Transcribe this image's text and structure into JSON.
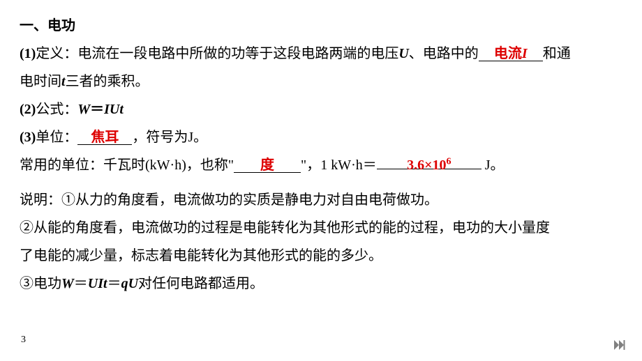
{
  "heading": "一、电功",
  "item1": {
    "label": "(1)",
    "pre": "定义：电流在一段电路中所做的功等于这段电路两端的电压",
    "varU": "U",
    "mid": "、电路中的",
    "blank1": "电流",
    "blank1_var": "I",
    "post1": "和通",
    "line2_pre": "电时间",
    "vart": "t",
    "line2_post": "三者的乘积。"
  },
  "item2": {
    "label": "(2)",
    "text": "公式：",
    "formula_W": "W",
    "formula_eq": "＝",
    "formula_IUt": "IUt"
  },
  "item3": {
    "label": "(3)",
    "pre": "单位：",
    "blank": "焦耳",
    "post": "，符号为J。"
  },
  "item4": {
    "pre": "常用的单位：千瓦时(kW",
    "dot": "·",
    "mid1": "h)，也称\"",
    "blank1": "度",
    "mid2": "\"，1 kW",
    "dot2": "·",
    "mid3": "h＝",
    "blank2_a": "3.6",
    "blank2_b": "×",
    "blank2_c": "10",
    "blank2_sup": "6",
    "post": " J。"
  },
  "note1": "说明：①从力的角度看，电流做功的实质是静电力对自由电荷做功。",
  "note2a": "②从能的角度看，电流做功的过程是电能转化为其他形式的能的过程，电功的大小量度",
  "note2b": "了电能的减少量，标志着电能转化为其他形式的能的多少。",
  "note3_pre": "③电功",
  "note3_W": "W",
  "note3_eq1": "＝",
  "note3_UIt": "UIt",
  "note3_eq2": "＝",
  "note3_qU": "qU",
  "note3_post": "对任何电路都适用。",
  "pageNum": "3",
  "colors": {
    "text": "#000000",
    "red": "#dd0000",
    "navFill": "#808080",
    "bg": "#ffffff"
  },
  "blankWidths": {
    "b1": "92px",
    "b2": "78px",
    "b3": "96px",
    "b4": "150px"
  }
}
